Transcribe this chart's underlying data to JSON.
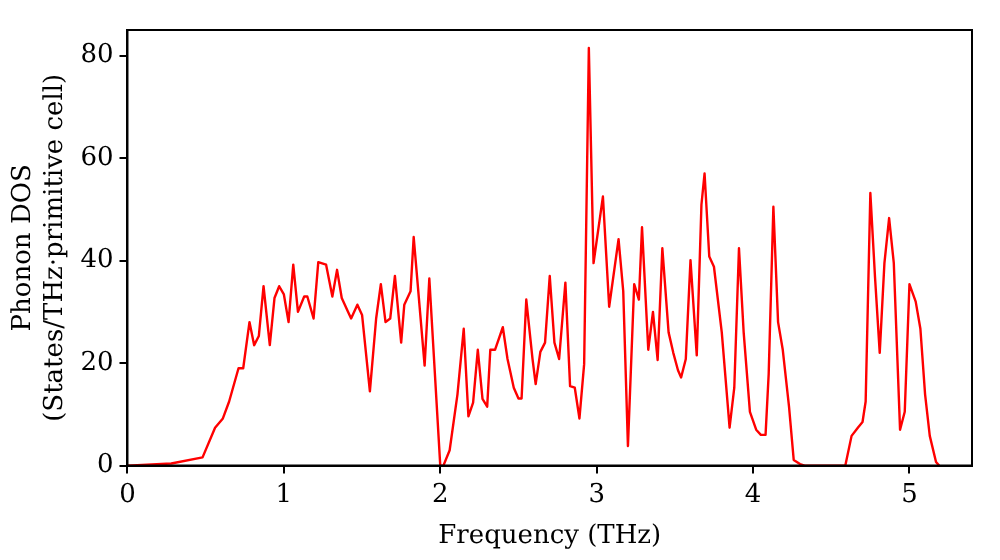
{
  "chart_data": {
    "type": "line",
    "xlabel": "Frequency (THz)",
    "ylabel": "Phonon DOS\n(States/THz·primitive cell)",
    "xlim": [
      0,
      5.4
    ],
    "xticks": [
      0,
      1,
      2,
      3,
      4,
      5
    ],
    "ylim": [
      0,
      85
    ],
    "yticks": [
      0,
      20,
      40,
      60,
      80
    ],
    "grid": false,
    "legend": false,
    "marker": "none",
    "line_style": "solid",
    "series": [
      {
        "color": "#ff0000",
        "x": [
          0,
          0.28,
          0.48,
          0.56,
          0.61,
          0.65,
          0.71,
          0.74,
          0.78,
          0.81,
          0.84,
          0.87,
          0.91,
          0.94,
          0.97,
          1.0,
          1.03,
          1.06,
          1.09,
          1.13,
          1.15,
          1.19,
          1.22,
          1.27,
          1.31,
          1.34,
          1.37,
          1.41,
          1.43,
          1.47,
          1.5,
          1.55,
          1.59,
          1.62,
          1.65,
          1.68,
          1.71,
          1.75,
          1.77,
          1.81,
          1.83,
          1.9,
          1.93,
          2.0,
          2.02,
          2.06,
          2.11,
          2.15,
          2.18,
          2.21,
          2.24,
          2.27,
          2.3,
          2.32,
          2.35,
          2.4,
          2.43,
          2.47,
          2.5,
          2.52,
          2.55,
          2.59,
          2.61,
          2.64,
          2.67,
          2.7,
          2.73,
          2.76,
          2.8,
          2.83,
          2.86,
          2.89,
          2.92,
          2.95,
          2.98,
          3.04,
          3.08,
          3.14,
          3.17,
          3.2,
          3.24,
          3.27,
          3.29,
          3.33,
          3.36,
          3.39,
          3.42,
          3.46,
          3.49,
          3.52,
          3.54,
          3.57,
          3.6,
          3.64,
          3.67,
          3.69,
          3.72,
          3.75,
          3.8,
          3.85,
          3.88,
          3.91,
          3.94,
          3.98,
          4.02,
          4.05,
          4.08,
          4.1,
          4.13,
          4.16,
          4.19,
          4.23,
          4.26,
          4.3,
          4.33,
          4.59,
          4.63,
          4.67,
          4.7,
          4.72,
          4.75,
          4.78,
          4.81,
          4.84,
          4.87,
          4.9,
          4.94,
          4.97,
          5.0,
          5.04,
          5.07,
          5.1,
          5.13,
          5.17,
          5.19
        ],
        "values": [
          0,
          0.4,
          1.6,
          7.4,
          9.2,
          12.5,
          19,
          19,
          28,
          23.5,
          25.3,
          35,
          23.5,
          32.7,
          35,
          33.4,
          28,
          39.2,
          30,
          33,
          33,
          28.7,
          39.7,
          39.2,
          33,
          38.2,
          32.7,
          30,
          28.7,
          31.4,
          29.4,
          14.5,
          28.7,
          35.4,
          28,
          28.7,
          37,
          24,
          31.4,
          34,
          44.6,
          19.5,
          36.5,
          0,
          0,
          3,
          13.9,
          26.7,
          9.6,
          12.3,
          22.6,
          13,
          11.5,
          22.6,
          22.6,
          27,
          20.8,
          15.2,
          13.1,
          13.1,
          32.4,
          20.8,
          15.9,
          22.2,
          24,
          37,
          24,
          20.8,
          35.7,
          15.5,
          15.2,
          9.2,
          19.8,
          81.5,
          39.5,
          52.5,
          31,
          44.2,
          34,
          3.8,
          35.4,
          32.4,
          46.5,
          22.6,
          30,
          20.6,
          42.4,
          26,
          22,
          18.6,
          17.2,
          20.8,
          40.1,
          21.5,
          50.9,
          57,
          40.8,
          38.8,
          26,
          7.4,
          15.2,
          42.4,
          26,
          10.5,
          7,
          6,
          6,
          17.9,
          50.5,
          28,
          22.6,
          11.5,
          1.1,
          0.3,
          0,
          0,
          5.8,
          7.4,
          8.5,
          12.5,
          53.2,
          36.7,
          22,
          39.5,
          48.3,
          39.5,
          7,
          10.5,
          35.4,
          32,
          26.7,
          13.9,
          5.8,
          0.7,
          0
        ]
      }
    ]
  }
}
